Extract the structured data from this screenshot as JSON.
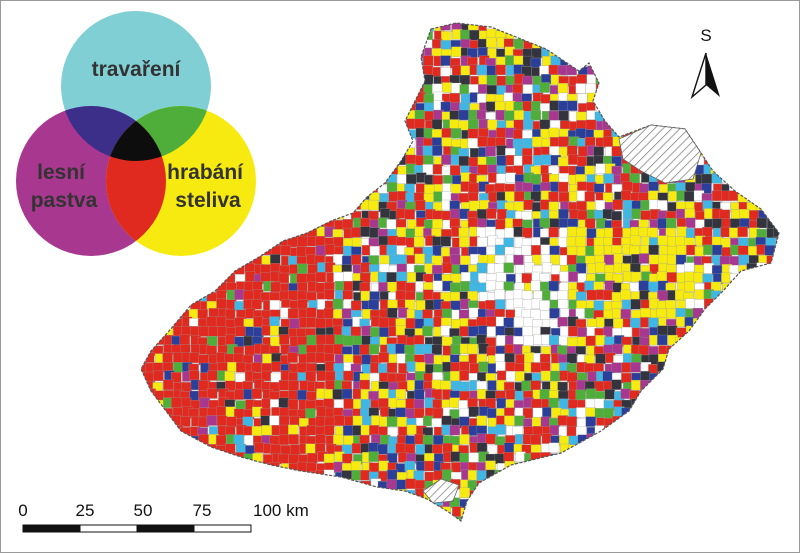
{
  "legend": {
    "circles": [
      {
        "key": "grazing_grass",
        "label_lines": [
          "travaření"
        ],
        "color": "#7fcfd4"
      },
      {
        "key": "forest_pasture",
        "label_lines": [
          "lesní",
          "pastva"
        ],
        "color": "#a8378f"
      },
      {
        "key": "litter_raking",
        "label_lines": [
          "hrabání",
          "steliva"
        ],
        "color": "#f7ea10"
      }
    ],
    "overlaps": {
      "grazing_forest": "#3b2f8a",
      "grazing_litter": "#4fae3a",
      "forest_litter": "#e02a1f",
      "all_three": "#0d0d0d"
    }
  },
  "map": {
    "region_fill": "#e8e8e8",
    "border_color": "#555555",
    "palette": [
      "#e02a1f",
      "#e02a1f",
      "#e02a1f",
      "#f7ea10",
      "#f7ea10",
      "#4fae3a",
      "#34343f",
      "#a8378f",
      "#3fb6e4",
      "#2b3f9a",
      "#ffffff"
    ],
    "hatched_area_color": "#888888"
  },
  "north_arrow": {
    "label": "S"
  },
  "scale_bar": {
    "ticks": [
      "0",
      "25",
      "50",
      "75",
      "100 km"
    ]
  }
}
